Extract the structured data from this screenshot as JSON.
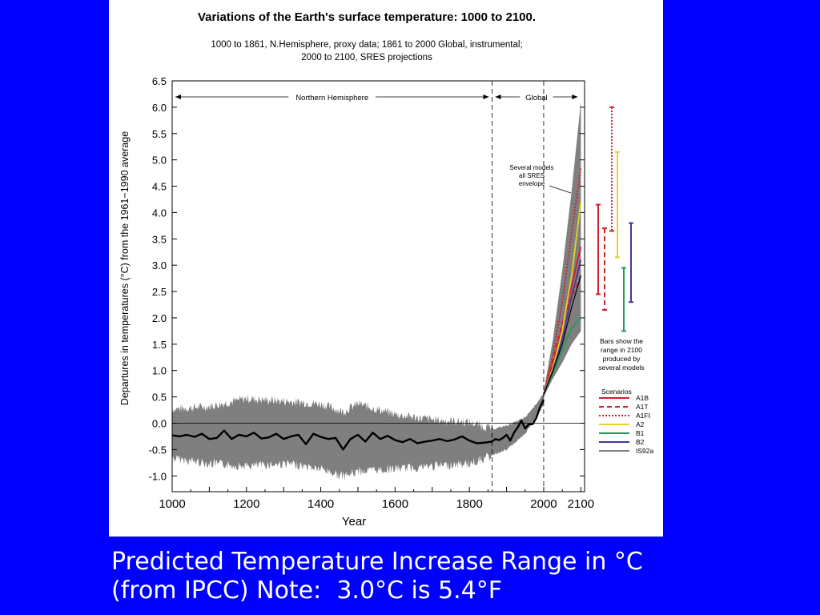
{
  "caption": {
    "line1": "Predicted Temperature Increase Range in °C",
    "line2": "(from IPCC) Note:  3.0°C is 5.4°F"
  },
  "colors": {
    "background": "#0000ff",
    "figure": "#ffffff",
    "envelope": "#7f7f7f",
    "A1B": "#d0202a",
    "A1T": "#d0202a",
    "A1FI": "#d0202a",
    "A2": "#e3d42a",
    "B1": "#1f9a5a",
    "B2": "#4b3496",
    "IS92a": "#000000"
  },
  "chart_data": {
    "type": "line",
    "title": "Variations of the Earth's surface temperature: 1000 to 2100.",
    "subtitle_line1": "1000 to 1861, N.Hemisphere, proxy data; 1861 to 2000 Global, instrumental;",
    "subtitle_line2": "2000 to 2100, SRES projections",
    "xlabel": "Year",
    "ylabel": "Departures in temperatures (°C) from the 1961−1990 average",
    "xlim": [
      1000,
      2110
    ],
    "ylim": [
      -1.3,
      6.5
    ],
    "x_ticks": [
      1000,
      1200,
      1400,
      1600,
      1800,
      2000,
      2100
    ],
    "y_ticks": [
      -1.0,
      -0.5,
      0.0,
      0.5,
      1.0,
      1.5,
      2.0,
      2.5,
      3.0,
      3.5,
      4.0,
      4.5,
      5.0,
      5.5,
      6.0,
      6.5
    ],
    "y_tick_labels": [
      "-1.0",
      "-0.5",
      "0.0",
      "0.5",
      "1.0",
      "1.5",
      "2.0",
      "2.5",
      "3.0",
      "3.5",
      "4.0",
      "4.5",
      "5.0",
      "5.5",
      "6.0",
      "6.5"
    ],
    "reference_line_y": 0.0,
    "dashed_verticals": [
      1861,
      2000
    ],
    "region_labels": [
      {
        "text": "Northern Hemisphere",
        "from": 1000,
        "to": 1861
      },
      {
        "text": "Global",
        "from": 1861,
        "to": 2100
      }
    ],
    "observed": {
      "x": [
        1000,
        1020,
        1040,
        1060,
        1080,
        1100,
        1120,
        1140,
        1160,
        1180,
        1200,
        1220,
        1240,
        1260,
        1280,
        1300,
        1320,
        1340,
        1360,
        1380,
        1400,
        1420,
        1440,
        1460,
        1480,
        1500,
        1520,
        1540,
        1560,
        1580,
        1600,
        1620,
        1640,
        1660,
        1680,
        1700,
        1720,
        1740,
        1760,
        1780,
        1800,
        1820,
        1840,
        1860,
        1870,
        1880,
        1890,
        1900,
        1910,
        1920,
        1930,
        1940,
        1950,
        1960,
        1970,
        1980,
        1990,
        2000
      ],
      "y": [
        -0.23,
        -0.25,
        -0.22,
        -0.26,
        -0.2,
        -0.3,
        -0.28,
        -0.14,
        -0.3,
        -0.22,
        -0.25,
        -0.18,
        -0.29,
        -0.27,
        -0.2,
        -0.3,
        -0.25,
        -0.22,
        -0.4,
        -0.2,
        -0.26,
        -0.3,
        -0.28,
        -0.5,
        -0.3,
        -0.22,
        -0.35,
        -0.18,
        -0.3,
        -0.24,
        -0.32,
        -0.36,
        -0.3,
        -0.38,
        -0.35,
        -0.33,
        -0.3,
        -0.34,
        -0.31,
        -0.25,
        -0.33,
        -0.38,
        -0.37,
        -0.35,
        -0.3,
        -0.32,
        -0.28,
        -0.22,
        -0.33,
        -0.18,
        -0.08,
        0.05,
        -0.1,
        -0.02,
        -0.02,
        0.1,
        0.3,
        0.45
      ]
    },
    "uncertainty_band": {
      "x": [
        1000,
        1100,
        1200,
        1300,
        1400,
        1460,
        1500,
        1600,
        1700,
        1800,
        1861,
        1900,
        1950,
        2000
      ],
      "upper": [
        0.25,
        0.3,
        0.45,
        0.4,
        0.35,
        0.2,
        0.35,
        0.15,
        0.05,
        0.0,
        -0.12,
        -0.05,
        0.1,
        0.55
      ],
      "lower": [
        -0.65,
        -0.75,
        -0.8,
        -0.75,
        -0.85,
        -1.0,
        -0.9,
        -0.85,
        -0.8,
        -0.75,
        -0.6,
        -0.5,
        -0.2,
        0.35
      ]
    },
    "sres_envelope": {
      "x": [
        2000,
        2025,
        2050,
        2075,
        2100
      ],
      "upper": [
        0.6,
        1.6,
        2.9,
        4.4,
        6.1
      ],
      "lower": [
        0.5,
        0.85,
        1.15,
        1.5,
        1.75
      ],
      "annotation": [
        "Several models",
        "all SRES",
        "envelope"
      ]
    },
    "series": [
      {
        "name": "A1B",
        "style": "solid",
        "x": [
          2000,
          2025,
          2050,
          2075,
          2100
        ],
        "values": [
          0.55,
          1.1,
          1.8,
          2.6,
          3.35
        ]
      },
      {
        "name": "A1T",
        "style": "dashed",
        "x": [
          2000,
          2025,
          2050,
          2075,
          2100
        ],
        "values": [
          0.55,
          1.2,
          1.9,
          2.4,
          2.8
        ]
      },
      {
        "name": "A1FI",
        "style": "dotted",
        "x": [
          2000,
          2025,
          2050,
          2075,
          2100
        ],
        "values": [
          0.55,
          1.3,
          2.3,
          3.6,
          4.85
        ]
      },
      {
        "name": "A2",
        "style": "solid",
        "x": [
          2000,
          2025,
          2050,
          2075,
          2100
        ],
        "values": [
          0.55,
          1.05,
          1.75,
          2.8,
          4.2
        ]
      },
      {
        "name": "B1",
        "style": "solid",
        "x": [
          2000,
          2025,
          2050,
          2075,
          2100
        ],
        "values": [
          0.55,
          0.95,
          1.4,
          1.8,
          2.0
        ]
      },
      {
        "name": "B2",
        "style": "solid",
        "x": [
          2000,
          2025,
          2050,
          2075,
          2100
        ],
        "values": [
          0.55,
          1.0,
          1.6,
          2.4,
          3.1
        ]
      },
      {
        "name": "IS92a",
        "style": "solid",
        "x": [
          2000,
          2025,
          2050,
          2075,
          2100
        ],
        "values": [
          0.55,
          1.0,
          1.5,
          2.2,
          2.8
        ]
      }
    ],
    "range_bars": [
      {
        "name": "A1B",
        "style": "solid",
        "low": 2.45,
        "high": 4.15
      },
      {
        "name": "A1T",
        "style": "dashed",
        "low": 2.15,
        "high": 3.7
      },
      {
        "name": "A1FI",
        "style": "dotted",
        "low": 3.65,
        "high": 6.0
      },
      {
        "name": "A2",
        "style": "solid",
        "low": 3.15,
        "high": 5.15
      },
      {
        "name": "B1",
        "style": "solid",
        "low": 1.75,
        "high": 2.95
      },
      {
        "name": "B2",
        "style": "solid",
        "low": 2.3,
        "high": 3.8
      }
    ],
    "range_bars_note": [
      "Bars show the",
      "range in 2100",
      "produced by",
      "several models"
    ],
    "legend": {
      "title": "Scenarios",
      "entries": [
        "A1B",
        "A1T",
        "A1FI",
        "A2",
        "B1",
        "B2",
        "IS92a"
      ],
      "placement": "right"
    }
  }
}
